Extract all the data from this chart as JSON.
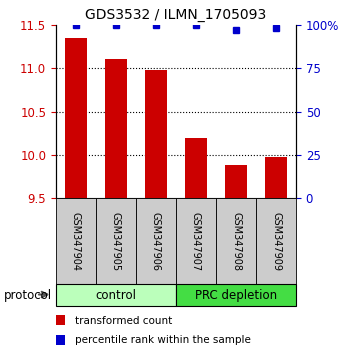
{
  "title": "GDS3532 / ILMN_1705093",
  "samples": [
    "GSM347904",
    "GSM347905",
    "GSM347906",
    "GSM347907",
    "GSM347908",
    "GSM347909"
  ],
  "bar_values": [
    11.35,
    11.1,
    10.98,
    10.2,
    9.88,
    9.98
  ],
  "bar_color": "#cc0000",
  "dot_values": [
    100,
    100,
    100,
    100,
    97,
    98
  ],
  "dot_color": "#0000cc",
  "ylim_left": [
    9.5,
    11.5
  ],
  "ylim_right": [
    0,
    100
  ],
  "yticks_left": [
    9.5,
    10.0,
    10.5,
    11.0,
    11.5
  ],
  "yticks_right": [
    0,
    25,
    50,
    75,
    100
  ],
  "groups": [
    {
      "label": "control",
      "samples": [
        0,
        1,
        2
      ],
      "color": "#bbffbb"
    },
    {
      "label": "PRC depletion",
      "samples": [
        3,
        4,
        5
      ],
      "color": "#44dd44"
    }
  ],
  "group_label": "protocol",
  "legend_bar_label": "transformed count",
  "legend_dot_label": "percentile rank within the sample",
  "tick_label_color_left": "#cc0000",
  "tick_label_color_right": "#0000cc",
  "sample_bg_color": "#cccccc",
  "bar_width": 0.55
}
